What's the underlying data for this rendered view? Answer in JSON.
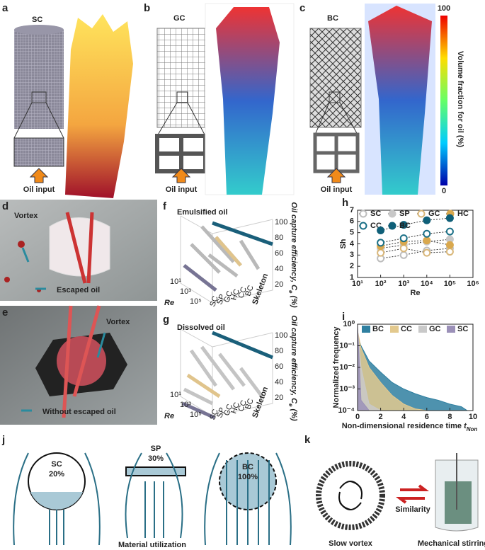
{
  "panels": {
    "a": {
      "label": "a",
      "title": "SC",
      "input": "Oil input"
    },
    "b": {
      "label": "b",
      "title": "GC",
      "input": "Oil input"
    },
    "c": {
      "label": "c",
      "title": "BC",
      "input": "Oil input"
    },
    "colorbar": {
      "max": 100,
      "min": 0,
      "label": "Volume fraction for oil (%)"
    },
    "d": {
      "label": "d",
      "vortex": "Vortex",
      "note": "Escaped oil"
    },
    "e": {
      "label": "e",
      "vortex": "Vortex",
      "note": "Without escaped oil"
    },
    "f": {
      "label": "f",
      "title": "Emulsified oil"
    },
    "g": {
      "label": "g",
      "title": "Dissolved oil"
    },
    "j": {
      "label": "j",
      "sc_name": "SC",
      "sc_value": "20%",
      "sp_name": "SP",
      "sp_value": "30%",
      "bc_name": "BC",
      "bc_value": "100%",
      "caption": "Material utilization"
    },
    "k": {
      "label": "k",
      "left": "Slow vortex",
      "middle": "Similarity",
      "right": "Mechanical stirring"
    }
  },
  "surface_axes": {
    "z_label": "Oil capture efficiency, C",
    "z_sub": "e",
    "z_unit": " (%)",
    "z_ticks": [
      20,
      40,
      60,
      80,
      100
    ],
    "re_label": "Re",
    "re_ticks": [
      "10¹",
      "10³",
      "10⁵"
    ],
    "skeleton_label": "Skeleton",
    "skeleton_ticks": [
      "SC",
      "SP",
      "GC",
      "HC",
      "CC",
      "BC"
    ]
  },
  "chart_data": [
    {
      "type": "scatter",
      "label": "h",
      "x_label": "Re",
      "y_label": "Sh",
      "xlog": true,
      "xlim": [
        10,
        1000000
      ],
      "xticks": [
        {
          "value": 10,
          "label": "10¹"
        },
        {
          "value": 100,
          "label": "10²"
        },
        {
          "value": 1000,
          "label": "10³"
        },
        {
          "value": 10000,
          "label": "10⁴"
        },
        {
          "value": 100000,
          "label": "10⁵"
        },
        {
          "value": 1000000,
          "label": "10⁶"
        }
      ],
      "ylim": [
        1,
        7
      ],
      "yticks": [
        1,
        2,
        3,
        4,
        5,
        6,
        7
      ],
      "x": [
        100,
        1000,
        10000,
        100000
      ],
      "series": [
        {
          "name": "SC",
          "color": "#bdbdbd",
          "marker": "open",
          "values": [
            2.7,
            3.0,
            3.4,
            3.6
          ]
        },
        {
          "name": "SP",
          "color": "#c8c8c8",
          "marker": "filled",
          "values": [
            3.6,
            3.9,
            4.2,
            4.4
          ]
        },
        {
          "name": "GC",
          "color": "#d9b77a",
          "marker": "open",
          "values": [
            3.2,
            3.6,
            3.2,
            3.3
          ]
        },
        {
          "name": "HC",
          "color": "#d9a84e",
          "marker": "filled",
          "values": [
            3.8,
            4.2,
            4.3,
            3.9
          ]
        },
        {
          "name": "CC",
          "color": "#1a6f86",
          "marker": "open",
          "values": [
            4.1,
            4.5,
            4.9,
            5.1
          ]
        },
        {
          "name": "BC",
          "color": "#0f5f78",
          "marker": "filled",
          "values": [
            5.2,
            5.7,
            6.1,
            6.3
          ]
        }
      ]
    },
    {
      "type": "area",
      "label": "i",
      "x_label": "Non-dimensional residence time ",
      "x_label_var": "t",
      "x_label_sub": "Non",
      "y_label": "Normalized frequency",
      "ylog": true,
      "xlim": [
        0,
        10
      ],
      "xticks": [
        0,
        2,
        4,
        6,
        8,
        10
      ],
      "ylim": [
        0.0001,
        1
      ],
      "yticks": [
        {
          "value": 0.0001,
          "label": "10⁻⁴"
        },
        {
          "value": 0.001,
          "label": "10⁻³"
        },
        {
          "value": 0.01,
          "label": "10⁻²"
        },
        {
          "value": 0.1,
          "label": "10⁻¹"
        },
        {
          "value": 1,
          "label": "10⁰"
        }
      ],
      "x": [
        0,
        0.3,
        1,
        2,
        3,
        4,
        5,
        6,
        7,
        8,
        9,
        9.5
      ],
      "series": [
        {
          "name": "BC",
          "color": "#2f7fa0",
          "values": [
            0.3,
            0.1,
            0.02,
            0.006,
            0.002,
            0.001,
            0.0006,
            0.0004,
            0.0003,
            0.0002,
            0.00015,
            0.0001
          ]
        },
        {
          "name": "CC",
          "color": "#e3c98e",
          "values": [
            0.5,
            0.08,
            0.01,
            0.002,
            0.0005,
            0.0002,
            0.00012,
            0.0001,
            null,
            null,
            null,
            null
          ]
        },
        {
          "name": "GC",
          "color": "#c9c9c9",
          "values": [
            0.6,
            0.01,
            0.0002,
            0.0001,
            null,
            null,
            null,
            null,
            null,
            null,
            null,
            null
          ]
        },
        {
          "name": "SC",
          "color": "#9b90b8",
          "values": [
            0.9,
            0.0003,
            0.0001,
            null,
            null,
            null,
            null,
            null,
            null,
            null,
            null,
            null
          ]
        }
      ]
    }
  ]
}
